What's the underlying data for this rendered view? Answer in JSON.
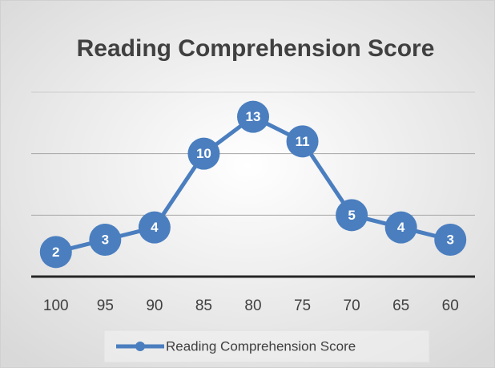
{
  "chart_data": {
    "type": "line",
    "title": "Reading Comprehension Score",
    "categories": [
      "100",
      "95",
      "90",
      "85",
      "80",
      "75",
      "70",
      "65",
      "60"
    ],
    "series": [
      {
        "name": "Reading Comprehension Score",
        "color": "#4a7ebf",
        "values": [
          2,
          3,
          4,
          10,
          13,
          11,
          5,
          4,
          3
        ]
      }
    ],
    "ylim": [
      0,
      15
    ],
    "yticks": [
      0,
      5,
      10,
      15
    ],
    "grid": true,
    "legend": "bottom"
  }
}
